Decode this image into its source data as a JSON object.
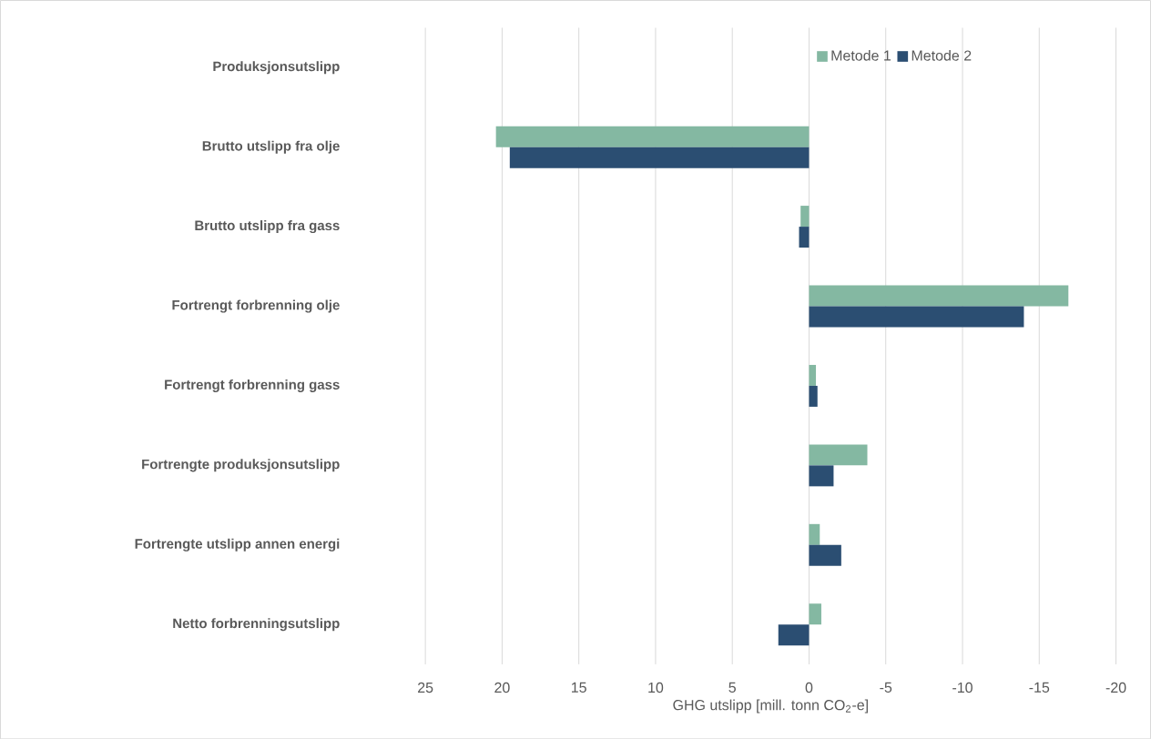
{
  "chart_data": {
    "type": "bar",
    "orientation": "horizontal",
    "xlabel": "GHG utslipp [mill. tonn CO$_{2}$-e]",
    "categories": [
      "Produksjonsutslipp",
      "Brutto utslipp fra olje",
      "Brutto utslipp fra gass",
      "Fortrengt forbrenning olje",
      "Fortrengt forbrenning gass",
      "Fortrengte produksjonsutslipp",
      "Fortrengte utslipp annen energi",
      "Netto forbrenningsutslipp"
    ],
    "series": [
      {
        "name": "Metode 1",
        "color": "#84b8a2",
        "values": [
          null,
          20.4,
          0.55,
          -16.9,
          -0.45,
          -3.8,
          -0.7,
          -0.8
        ]
      },
      {
        "name": "Metode 2",
        "color": "#2b4e72",
        "values": [
          null,
          19.5,
          0.65,
          -14.0,
          -0.55,
          -1.6,
          -2.1,
          2.0
        ]
      }
    ],
    "xlim": [
      25,
      -20
    ],
    "xticks": [
      25,
      20,
      15,
      10,
      5,
      0,
      -5,
      -10,
      -15,
      -20
    ],
    "grid": "x",
    "legend": "top right"
  }
}
